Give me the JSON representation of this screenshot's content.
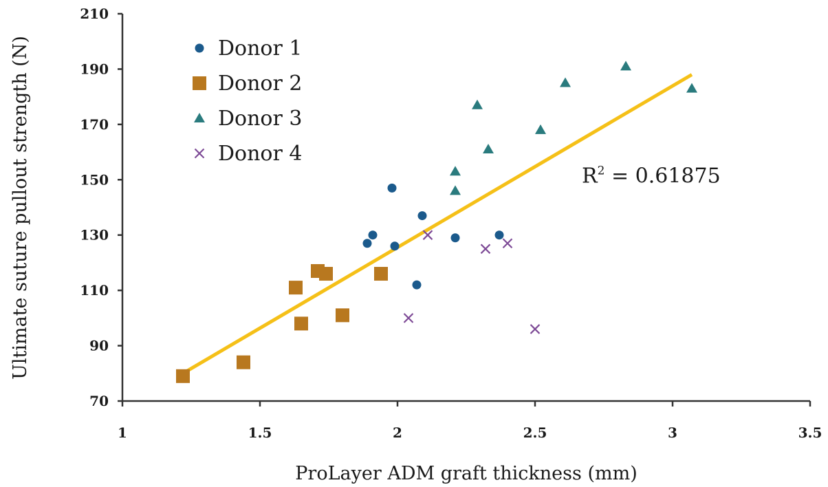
{
  "chart_data": {
    "type": "scatter",
    "xlabel": "ProLayer ADM graft thickness (mm)",
    "ylabel": "Ultimate suture pullout strength (N)",
    "xlim": [
      1,
      3.5
    ],
    "ylim": [
      70,
      210
    ],
    "x_ticks": [
      "1",
      "1.5",
      "2",
      "2.5",
      "3",
      "3.5"
    ],
    "y_ticks": [
      "70",
      "90",
      "110",
      "130",
      "150",
      "170",
      "190",
      "210"
    ],
    "grid": false,
    "legend_position": "top-left",
    "series": [
      {
        "name": "Donor 1",
        "marker": "circle",
        "color": "#1b5a8c",
        "points": [
          [
            1.89,
            127
          ],
          [
            1.91,
            130
          ],
          [
            1.98,
            147
          ],
          [
            1.99,
            126
          ],
          [
            2.07,
            112
          ],
          [
            2.09,
            137
          ],
          [
            2.21,
            129
          ],
          [
            2.37,
            130
          ]
        ]
      },
      {
        "name": "Donor 2",
        "marker": "square",
        "color": "#b8781f",
        "points": [
          [
            1.22,
            79
          ],
          [
            1.44,
            84
          ],
          [
            1.63,
            111
          ],
          [
            1.65,
            98
          ],
          [
            1.71,
            117
          ],
          [
            1.74,
            116
          ],
          [
            1.8,
            101
          ],
          [
            1.94,
            116
          ]
        ]
      },
      {
        "name": "Donor 3",
        "marker": "triangle",
        "color": "#2a7b7e",
        "points": [
          [
            2.21,
            153
          ],
          [
            2.21,
            146
          ],
          [
            2.29,
            177
          ],
          [
            2.33,
            161
          ],
          [
            2.52,
            168
          ],
          [
            2.61,
            185
          ],
          [
            2.83,
            191
          ],
          [
            3.07,
            183
          ]
        ]
      },
      {
        "name": "Donor 4",
        "marker": "x",
        "color": "#7d4a96",
        "points": [
          [
            2.04,
            100
          ],
          [
            2.11,
            130
          ],
          [
            2.32,
            125
          ],
          [
            2.4,
            127
          ],
          [
            2.5,
            96
          ]
        ]
      }
    ],
    "trendline": {
      "color": "#f5c018",
      "from": [
        1.22,
        80
      ],
      "to": [
        3.07,
        188
      ]
    },
    "annotation": {
      "text_main": "R",
      "text_sup": "2",
      "text_rest": " = 0.61875",
      "x": 2.67,
      "y": 149
    }
  }
}
